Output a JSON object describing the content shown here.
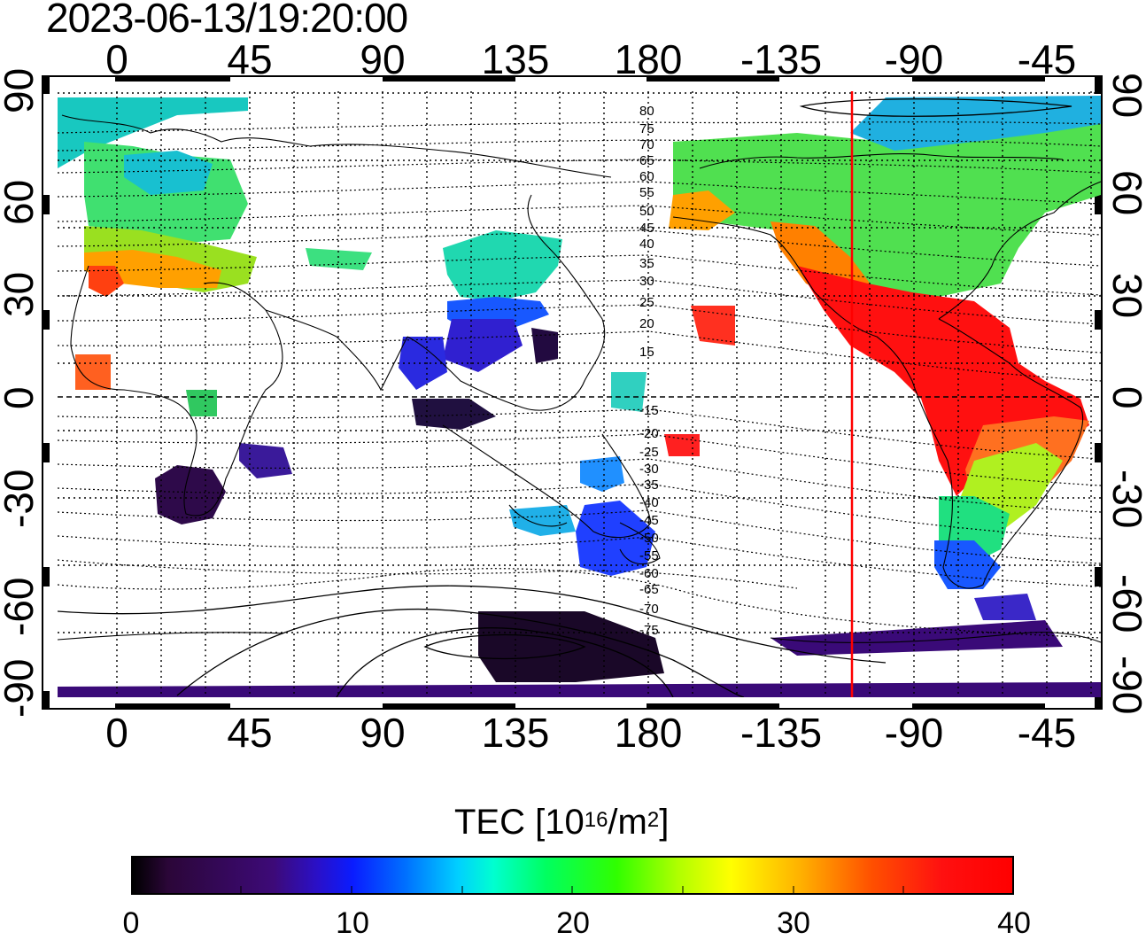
{
  "timestamp": "2023-06-13/19:20:00",
  "lon_ticks": [
    "0",
    "45",
    "90",
    "135",
    "180",
    "-135",
    "-90",
    "-45"
  ],
  "lat_ticks": [
    "90",
    "60",
    "30",
    "0",
    "-30",
    "-60",
    "-90"
  ],
  "mlat_labels_north": [
    "80",
    "75",
    "70",
    "65",
    "60",
    "55",
    "50",
    "45",
    "40",
    "35",
    "30",
    "25",
    "20",
    "15"
  ],
  "mlat_labels_south": [
    "-15",
    "-20",
    "-25",
    "-30",
    "-35",
    "-40",
    "-45",
    "-50",
    "-55",
    "-60",
    "-65",
    "-70",
    "-75"
  ],
  "colorbar": {
    "title_main": "TEC  [10",
    "title_sup1": "16",
    "title_mid": "/m",
    "title_sup2": "2",
    "title_end": "]",
    "labels": [
      "0",
      "10",
      "20",
      "30",
      "40"
    ]
  },
  "colors": {
    "terminator": "#ff0000",
    "coastline": "#000000"
  }
}
